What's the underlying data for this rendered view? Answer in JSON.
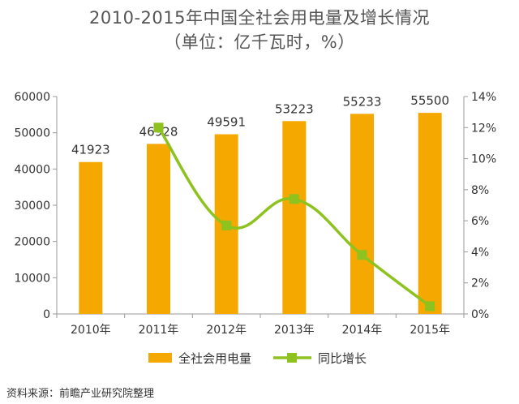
{
  "chart_data": {
    "type": "bar",
    "title": "2010-2015年中国全社会用电量及增长情况",
    "subtitle": "（单位：亿千瓦时，%）",
    "categories": [
      "2010年",
      "2011年",
      "2012年",
      "2013年",
      "2014年",
      "2015年"
    ],
    "series": [
      {
        "name": "全社会用电量",
        "type": "bar",
        "axis": "left",
        "color": "#F5A800",
        "values": [
          41923,
          46928,
          49591,
          53223,
          55233,
          55500
        ],
        "data_labels": [
          "41923",
          "46928",
          "49591",
          "53223",
          "55233",
          "55500"
        ]
      },
      {
        "name": "同比增长",
        "type": "line",
        "axis": "right",
        "color": "#8DC21F",
        "values": [
          null,
          12.0,
          5.7,
          7.4,
          3.8,
          0.5
        ]
      }
    ],
    "y_left": {
      "ylim": [
        0,
        60000
      ],
      "ticks": [
        0,
        10000,
        20000,
        30000,
        40000,
        50000,
        60000
      ],
      "tick_labels": [
        "0",
        "10000",
        "20000",
        "30000",
        "40000",
        "50000",
        "60000"
      ]
    },
    "y_right": {
      "ylim": [
        0,
        14
      ],
      "ticks": [
        0,
        2,
        4,
        6,
        8,
        10,
        12,
        14
      ],
      "tick_labels": [
        "0%",
        "2%",
        "4%",
        "6%",
        "8%",
        "10%",
        "12%",
        "14%"
      ]
    },
    "grid": false,
    "legend_position": "bottom"
  },
  "source_text": "资料来源：前瞻产业研究院整理"
}
